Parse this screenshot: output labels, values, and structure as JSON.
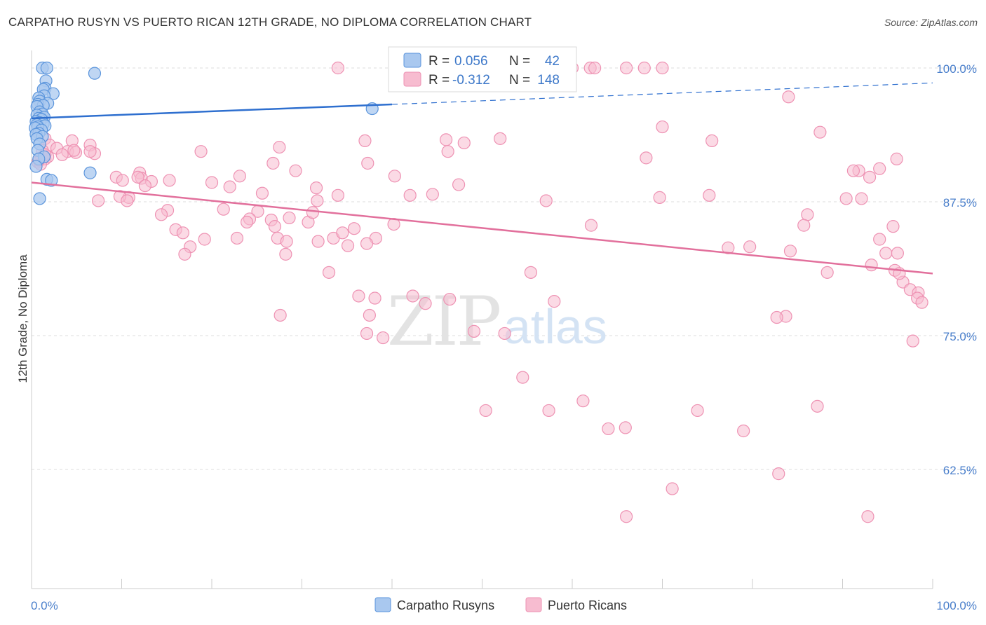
{
  "title": "CARPATHO RUSYN VS PUERTO RICAN 12TH GRADE, NO DIPLOMA CORRELATION CHART",
  "source": "Source: ZipAtlas.com",
  "watermark": {
    "part1": "ZIP",
    "part2": "atlas"
  },
  "colors": {
    "blue_fill": "#a9c8ef",
    "blue_stroke": "#5b95dc",
    "blue_line": "#2e6fcf",
    "pink_fill": "#f7bcd0",
    "pink_stroke": "#ee92b3",
    "pink_line": "#e2709c",
    "grid": "#dddddd",
    "tick_label": "#4a7fcb"
  },
  "legend": {
    "r_label": "R =",
    "n_label": "N =",
    "rows": [
      {
        "r": "0.056",
        "n": "42"
      },
      {
        "r": "-0.312",
        "n": "148"
      }
    ]
  },
  "chart_data": {
    "type": "scatter",
    "title": "CARPATHO RUSYN VS PUERTO RICAN 12TH GRADE, NO DIPLOMA CORRELATION CHART",
    "xlabel": "",
    "ylabel": "12th Grade, No Diploma",
    "xlim": [
      0,
      100
    ],
    "ylim": [
      52,
      102
    ],
    "x_tick_labels": [
      "0.0%",
      "100.0%"
    ],
    "y_ticks": [
      62.5,
      75.0,
      87.5,
      100.0
    ],
    "y_tick_labels": [
      "62.5%",
      "75.0%",
      "87.5%",
      "100.0%"
    ],
    "grid": true,
    "legend_position": "top-center",
    "series": [
      {
        "name": "Carpatho Rusyns",
        "color": "blue",
        "r": 0.056,
        "n": 42,
        "trend": {
          "x0": 0,
          "y0": 95.3,
          "x1": 40,
          "y1": 96.6,
          "x_ext": 100,
          "y_ext": 98.6
        },
        "points": [
          [
            1.2,
            100
          ],
          [
            1.7,
            100
          ],
          [
            7.0,
            99.5
          ],
          [
            1.6,
            98.8
          ],
          [
            1.5,
            98.1
          ],
          [
            1.3,
            98.0
          ],
          [
            2.4,
            97.6
          ],
          [
            1.4,
            97.4
          ],
          [
            0.8,
            97.2
          ],
          [
            0.9,
            96.9
          ],
          [
            1.8,
            96.7
          ],
          [
            0.7,
            96.6
          ],
          [
            1.3,
            96.5
          ],
          [
            0.6,
            96.4
          ],
          [
            0.9,
            95.9
          ],
          [
            1.2,
            95.7
          ],
          [
            0.6,
            95.6
          ],
          [
            1.4,
            95.4
          ],
          [
            0.8,
            95.3
          ],
          [
            1.1,
            95.2
          ],
          [
            0.5,
            95.0
          ],
          [
            0.9,
            94.9
          ],
          [
            1.3,
            94.8
          ],
          [
            0.6,
            94.7
          ],
          [
            1.5,
            94.6
          ],
          [
            0.7,
            94.5
          ],
          [
            0.4,
            94.4
          ],
          [
            1.1,
            94.2
          ],
          [
            0.8,
            93.9
          ],
          [
            0.5,
            93.8
          ],
          [
            1.2,
            93.6
          ],
          [
            0.6,
            93.4
          ],
          [
            0.9,
            92.9
          ],
          [
            0.7,
            92.3
          ],
          [
            1.4,
            91.7
          ],
          [
            0.8,
            91.5
          ],
          [
            0.5,
            90.8
          ],
          [
            6.5,
            90.2
          ],
          [
            1.7,
            89.6
          ],
          [
            2.2,
            89.5
          ],
          [
            0.9,
            87.8
          ],
          [
            37.8,
            96.2
          ]
        ]
      },
      {
        "name": "Puerto Ricans",
        "color": "pink",
        "r": -0.312,
        "n": 148,
        "trend": {
          "x0": 0,
          "y0": 89.3,
          "x1": 100,
          "y1": 80.8
        },
        "points": [
          [
            34.0,
            100
          ],
          [
            58.0,
            100
          ],
          [
            60.0,
            100
          ],
          [
            62.0,
            100
          ],
          [
            62.5,
            100
          ],
          [
            66.0,
            100
          ],
          [
            68.0,
            100
          ],
          [
            70.0,
            100
          ],
          [
            84.0,
            97.3
          ],
          [
            70.0,
            94.5
          ],
          [
            87.5,
            94.0
          ],
          [
            75.5,
            93.2
          ],
          [
            46.0,
            93.3
          ],
          [
            37.0,
            93.2
          ],
          [
            52.0,
            93.4
          ],
          [
            48.0,
            93.0
          ],
          [
            4.5,
            93.2
          ],
          [
            1.5,
            93.4
          ],
          [
            2.0,
            92.8
          ],
          [
            6.5,
            92.8
          ],
          [
            2.8,
            92.5
          ],
          [
            1.2,
            92.3
          ],
          [
            4.0,
            92.2
          ],
          [
            4.9,
            92.1
          ],
          [
            4.7,
            92.3
          ],
          [
            3.4,
            91.9
          ],
          [
            7.0,
            92.0
          ],
          [
            1.1,
            91.6
          ],
          [
            0.7,
            91.2
          ],
          [
            1.5,
            91.5
          ],
          [
            6.5,
            92.2
          ],
          [
            18.8,
            92.2
          ],
          [
            27.5,
            92.6
          ],
          [
            46.2,
            92.2
          ],
          [
            68.2,
            91.6
          ],
          [
            26.8,
            91.1
          ],
          [
            29.3,
            90.4
          ],
          [
            37.3,
            91.1
          ],
          [
            96.0,
            91.5
          ],
          [
            94.1,
            90.6
          ],
          [
            91.8,
            90.4
          ],
          [
            91.2,
            90.4
          ],
          [
            93.0,
            89.8
          ],
          [
            9.4,
            89.8
          ],
          [
            10.1,
            89.5
          ],
          [
            12.0,
            90.2
          ],
          [
            12.2,
            89.7
          ],
          [
            15.3,
            89.5
          ],
          [
            40.3,
            89.9
          ],
          [
            23.1,
            89.9
          ],
          [
            20.0,
            89.3
          ],
          [
            13.3,
            89.4
          ],
          [
            11.8,
            89.8
          ],
          [
            12.6,
            89.0
          ],
          [
            47.4,
            89.1
          ],
          [
            22.0,
            88.9
          ],
          [
            25.6,
            88.3
          ],
          [
            34.0,
            88.1
          ],
          [
            31.6,
            88.8
          ],
          [
            42.0,
            88.1
          ],
          [
            44.5,
            88.2
          ],
          [
            57.1,
            87.6
          ],
          [
            69.7,
            87.9
          ],
          [
            75.2,
            88.1
          ],
          [
            90.4,
            87.8
          ],
          [
            92.1,
            87.8
          ],
          [
            10.8,
            87.9
          ],
          [
            7.4,
            87.6
          ],
          [
            9.8,
            88.0
          ],
          [
            10.6,
            87.6
          ],
          [
            15.1,
            86.7
          ],
          [
            14.4,
            86.3
          ],
          [
            21.3,
            86.8
          ],
          [
            25.1,
            86.6
          ],
          [
            24.2,
            85.9
          ],
          [
            28.6,
            86.0
          ],
          [
            30.7,
            85.6
          ],
          [
            40.2,
            85.4
          ],
          [
            35.8,
            85.0
          ],
          [
            62.1,
            85.3
          ],
          [
            86.1,
            86.3
          ],
          [
            85.7,
            85.3
          ],
          [
            95.6,
            85.2
          ],
          [
            26.6,
            85.8
          ],
          [
            16.0,
            84.9
          ],
          [
            16.8,
            84.6
          ],
          [
            19.2,
            84.0
          ],
          [
            22.8,
            84.1
          ],
          [
            27.3,
            84.1
          ],
          [
            28.3,
            83.8
          ],
          [
            31.8,
            83.8
          ],
          [
            33.5,
            84.1
          ],
          [
            34.5,
            84.6
          ],
          [
            38.2,
            84.1
          ],
          [
            37.2,
            83.6
          ],
          [
            35.1,
            83.4
          ],
          [
            17.6,
            83.3
          ],
          [
            79.7,
            83.3
          ],
          [
            94.1,
            84.0
          ],
          [
            27.0,
            85.2
          ],
          [
            23.9,
            85.6
          ],
          [
            31.2,
            86.5
          ],
          [
            31.7,
            87.6
          ],
          [
            94.8,
            82.7
          ],
          [
            96.1,
            82.7
          ],
          [
            17.0,
            82.6
          ],
          [
            28.2,
            82.6
          ],
          [
            77.3,
            83.2
          ],
          [
            84.2,
            82.9
          ],
          [
            88.3,
            80.9
          ],
          [
            95.8,
            81.1
          ],
          [
            96.7,
            80.0
          ],
          [
            97.5,
            79.3
          ],
          [
            98.4,
            79.0
          ],
          [
            96.3,
            80.8
          ],
          [
            98.3,
            78.5
          ],
          [
            98.8,
            78.1
          ],
          [
            93.2,
            81.6
          ],
          [
            33.0,
            80.9
          ],
          [
            55.4,
            80.9
          ],
          [
            36.3,
            78.7
          ],
          [
            38.1,
            78.5
          ],
          [
            42.3,
            78.7
          ],
          [
            46.4,
            78.4
          ],
          [
            58.0,
            78.2
          ],
          [
            43.7,
            78.0
          ],
          [
            37.5,
            76.9
          ],
          [
            27.6,
            76.9
          ],
          [
            49.1,
            75.4
          ],
          [
            52.5,
            75.2
          ],
          [
            37.2,
            75.2
          ],
          [
            83.7,
            76.8
          ],
          [
            82.7,
            76.7
          ],
          [
            97.8,
            74.5
          ],
          [
            1.0,
            91.0
          ],
          [
            1.8,
            91.7
          ],
          [
            1.5,
            91.9
          ],
          [
            0.8,
            91.4
          ],
          [
            54.5,
            71.1
          ],
          [
            61.2,
            68.9
          ],
          [
            57.4,
            68.0
          ],
          [
            50.4,
            68.0
          ],
          [
            39.0,
            74.8
          ],
          [
            73.9,
            68.0
          ],
          [
            87.2,
            68.4
          ],
          [
            64.0,
            66.3
          ],
          [
            65.9,
            66.4
          ],
          [
            79.0,
            66.1
          ],
          [
            71.1,
            60.7
          ],
          [
            82.9,
            62.1
          ],
          [
            66.0,
            58.1
          ],
          [
            92.8,
            58.1
          ]
        ]
      }
    ]
  },
  "bottom_legend": [
    "Carpatho Rusyns",
    "Puerto Ricans"
  ]
}
